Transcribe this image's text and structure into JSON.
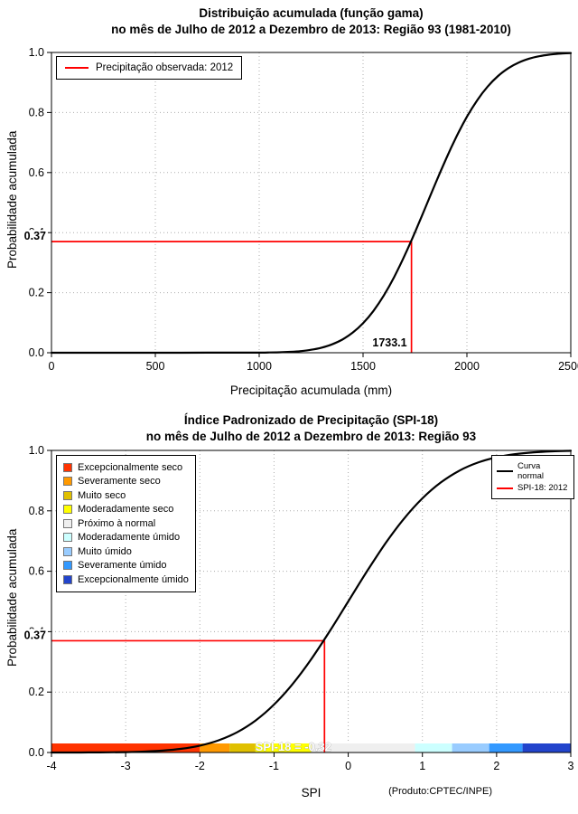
{
  "page": {
    "footer_note": "(Produto:CPTEC/INPE)"
  },
  "chart_data": [
    {
      "type": "line",
      "title": "Distribuição acumulada (função gama)",
      "subtitle": "no mês de Julho de 2012 a Dezembro de 2013: Região 93 (1981-2010)",
      "xlabel": "Precipitação acumulada (mm)",
      "ylabel": "Probabilidade acumulada",
      "xlim": [
        0,
        2500
      ],
      "ylim": [
        0,
        1
      ],
      "xticks": [
        "0",
        "500",
        "1000",
        "1500",
        "2000",
        "2500"
      ],
      "yticks": [
        "0.0",
        "0.2",
        "0.4",
        "0.6",
        "0.8",
        "1.0"
      ],
      "grid": true,
      "legend_position": "top-left",
      "legend": [
        {
          "label": "Precipitação observada: 2012",
          "color": "#ff0000"
        }
      ],
      "marker": {
        "x": 1733.1,
        "y": 0.37,
        "x_label": "1733.1",
        "y_label": "0.37",
        "color": "#ff0000"
      },
      "series": [
        {
          "name": "Distribuição gama acumulada (1981-2010)",
          "color": "#000000",
          "x": [
            0,
            250,
            500,
            750,
            1000,
            1050,
            1100,
            1150,
            1200,
            1250,
            1300,
            1350,
            1400,
            1450,
            1500,
            1550,
            1600,
            1650,
            1700,
            1750,
            1800,
            1850,
            1900,
            1950,
            2000,
            2050,
            2100,
            2150,
            2200,
            2250,
            2300,
            2350,
            2400,
            2450,
            2500
          ],
          "y": [
            0,
            0,
            0.0001,
            0.0002,
            0.0004,
            0.0008,
            0.0016,
            0.003,
            0.0055,
            0.0098,
            0.0168,
            0.0277,
            0.0438,
            0.0668,
            0.0982,
            0.1393,
            0.1908,
            0.2525,
            0.3234,
            0.4013,
            0.4834,
            0.5662,
            0.6462,
            0.7202,
            0.7857,
            0.8413,
            0.8865,
            0.9217,
            0.9479,
            0.9666,
            0.9794,
            0.9878,
            0.993,
            0.9962,
            0.998
          ]
        }
      ]
    },
    {
      "type": "line",
      "title": "Índice Padronizado de Precipitação (SPI-18)",
      "subtitle": "no mês de Julho de 2012 a Dezembro de 2013: Região 93",
      "xlabel": "SPI",
      "ylabel": "Probabilidade acumulada",
      "xlim": [
        -4,
        3
      ],
      "ylim": [
        0,
        1
      ],
      "xticks": [
        "-4",
        "-3",
        "-2",
        "-1",
        "0",
        "1",
        "2",
        "3"
      ],
      "yticks": [
        "0.0",
        "0.2",
        "0.4",
        "0.6",
        "0.8",
        "1.0"
      ],
      "grid": true,
      "curve_legend": [
        {
          "label": "Curva normal",
          "color": "#000000"
        },
        {
          "label": "SPI-18: 2012",
          "color": "#ff0000"
        }
      ],
      "categories_legend": [
        {
          "label": "Excepcionalmente seco",
          "color": "#ff3300"
        },
        {
          "label": "Severamente seco",
          "color": "#ff9900"
        },
        {
          "label": "Muito seco",
          "color": "#e0c000"
        },
        {
          "label": "Moderadamente seco",
          "color": "#ffff00"
        },
        {
          "label": "Próximo à normal",
          "color": "#efefef"
        },
        {
          "label": "Moderadamente úmido",
          "color": "#ccffff"
        },
        {
          "label": "Muito úmido",
          "color": "#99ccff"
        },
        {
          "label": "Severamente úmido",
          "color": "#3399ff"
        },
        {
          "label": "Excepcionalmente úmido",
          "color": "#2244cc"
        }
      ],
      "marker": {
        "x": -0.32,
        "y": 0.37,
        "y_label": "0.37",
        "bar_label": "SPI-18 = -0.32",
        "color": "#ff0000"
      },
      "colorbar": {
        "segments": [
          {
            "from": -4,
            "to": -2,
            "color": "#ff3300"
          },
          {
            "from": -2,
            "to": -1.6,
            "color": "#ff9900"
          },
          {
            "from": -1.6,
            "to": -1.25,
            "color": "#e0c000"
          },
          {
            "from": -1.25,
            "to": -0.5,
            "color": "#ffff00"
          },
          {
            "from": -0.5,
            "to": 0.9,
            "color": "#efefef"
          },
          {
            "from": 0.9,
            "to": 1.4,
            "color": "#ccffff"
          },
          {
            "from": 1.4,
            "to": 1.9,
            "color": "#99ccff"
          },
          {
            "from": 1.9,
            "to": 2.35,
            "color": "#3399ff"
          },
          {
            "from": 2.35,
            "to": 3,
            "color": "#2244cc"
          }
        ]
      },
      "series": [
        {
          "name": "Curva normal",
          "color": "#000000",
          "x": [
            -4,
            -3.75,
            -3.5,
            -3.25,
            -3,
            -2.75,
            -2.5,
            -2.25,
            -2,
            -1.75,
            -1.5,
            -1.25,
            -1,
            -0.75,
            -0.5,
            -0.25,
            0,
            0.25,
            0.5,
            0.75,
            1,
            1.25,
            1.5,
            1.75,
            2,
            2.25,
            2.5,
            2.75,
            3
          ],
          "y": [
            0,
            0.0001,
            0.0002,
            0.0006,
            0.0013,
            0.003,
            0.0062,
            0.0122,
            0.0228,
            0.0401,
            0.0668,
            0.1056,
            0.1587,
            0.2266,
            0.3085,
            0.4013,
            0.5,
            0.5987,
            0.6915,
            0.7734,
            0.8413,
            0.8944,
            0.9332,
            0.9599,
            0.9772,
            0.9878,
            0.9938,
            0.997,
            0.9987
          ]
        }
      ]
    }
  ]
}
